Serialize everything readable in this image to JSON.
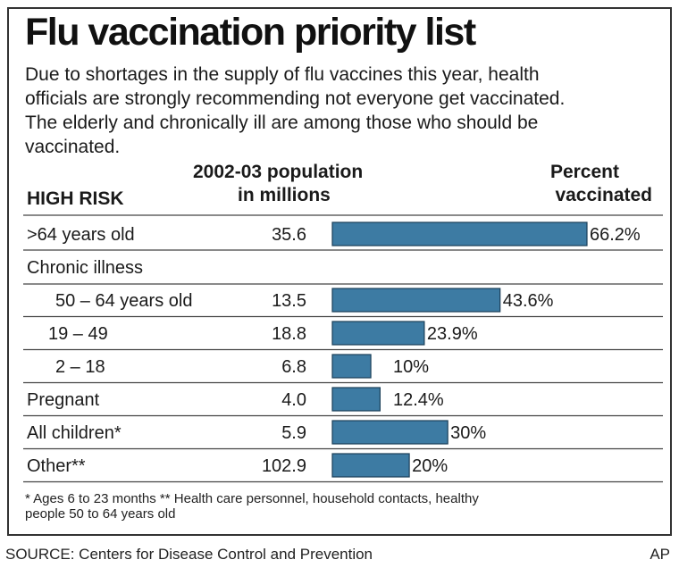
{
  "title": "Flu vaccination priority list",
  "intro": [
    "Due to shortages in the supply of flu vaccines this year, health",
    "officials are strongly recommending not everyone get vaccinated.",
    "The elderly and chronically ill are among those who should be",
    "vaccinated."
  ],
  "headers": {
    "category": "HIGH RISK",
    "population_line1": "2002-03 population",
    "population_line2": "in millions",
    "percent_line1": "Percent",
    "percent_line2": "vaccinated"
  },
  "chart_data": {
    "type": "bar",
    "orientation": "horizontal",
    "title": "Flu vaccination priority list",
    "group_labels": [
      "Chronic illness"
    ],
    "categories": [
      ">64 years old",
      "50 – 64 years old",
      "19 – 49",
      "2 – 18",
      "Pregnant",
      "All children*",
      "Other**"
    ],
    "group": [
      "",
      "Chronic illness",
      "Chronic illness",
      "Chronic illness",
      "",
      "",
      ""
    ],
    "population_millions": [
      35.6,
      13.5,
      18.8,
      6.8,
      4.0,
      5.9,
      102.9
    ],
    "population_labels": [
      "35.6",
      "13.5",
      "18.8",
      "6.8",
      "4.0",
      "5.9",
      "102.9"
    ],
    "values": [
      66.2,
      43.6,
      23.9,
      10,
      12.4,
      30,
      20
    ],
    "value_labels": [
      "66.2%",
      "43.6%",
      "23.9%",
      "10%",
      "12.4%",
      "30%",
      "20%"
    ],
    "xlim": [
      0,
      66.2
    ],
    "bar_color": "#3d7ba3",
    "grid": false
  },
  "footnote": [
    "*  Ages 6 to 23 months  ** Health care personnel, household contacts, healthy",
    "people 50 to 64 years old"
  ],
  "source": "SOURCE: Centers for Disease Control and Prevention",
  "credit": "AP"
}
